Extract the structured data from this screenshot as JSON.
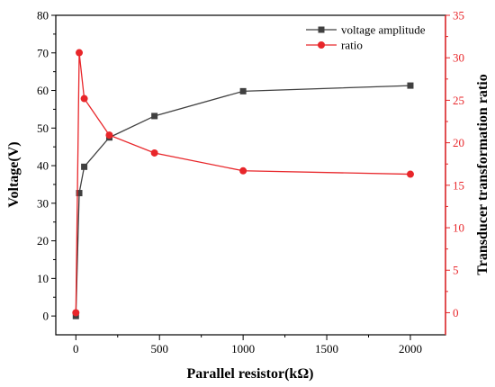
{
  "chart_data": {
    "type": "line",
    "xlabel": "Parallel resistor(kΩ)",
    "ylabel": "Voltage(V)",
    "y2label": "Transducer transformation ratio",
    "xlim": [
      -120,
      2210
    ],
    "ylim": [
      -5,
      80
    ],
    "y2lim": [
      -2.6,
      35
    ],
    "x_ticks": [
      0,
      500,
      1000,
      1500,
      2000
    ],
    "x_tick_labels": [
      "0",
      "500",
      "1000",
      "1500",
      "2000"
    ],
    "y_ticks": [
      0,
      10,
      20,
      30,
      40,
      50,
      60,
      70,
      80
    ],
    "y_tick_labels": [
      "0",
      "10",
      "20",
      "30",
      "40",
      "50",
      "60",
      "70",
      "80"
    ],
    "y2_ticks": [
      0,
      5,
      10,
      15,
      20,
      25,
      30,
      35
    ],
    "y2_tick_labels": [
      "0",
      "5",
      "10",
      "15",
      "20",
      "25",
      "30",
      "35"
    ],
    "grid": false,
    "legend_position": "top-right",
    "series": [
      {
        "name": "voltage amplitude",
        "axis": "left",
        "color": "#404040",
        "marker": "square",
        "x": [
          0,
          20,
          50,
          200,
          470,
          1000,
          2000
        ],
        "values": [
          0,
          32.7,
          39.7,
          47.5,
          53.2,
          59.8,
          61.3
        ]
      },
      {
        "name": "ratio",
        "axis": "right",
        "color": "#e8262a",
        "marker": "circle",
        "x": [
          0,
          20,
          50,
          200,
          470,
          1000,
          2000
        ],
        "values": [
          0,
          30.6,
          25.2,
          20.9,
          18.8,
          16.7,
          16.3
        ]
      }
    ]
  }
}
